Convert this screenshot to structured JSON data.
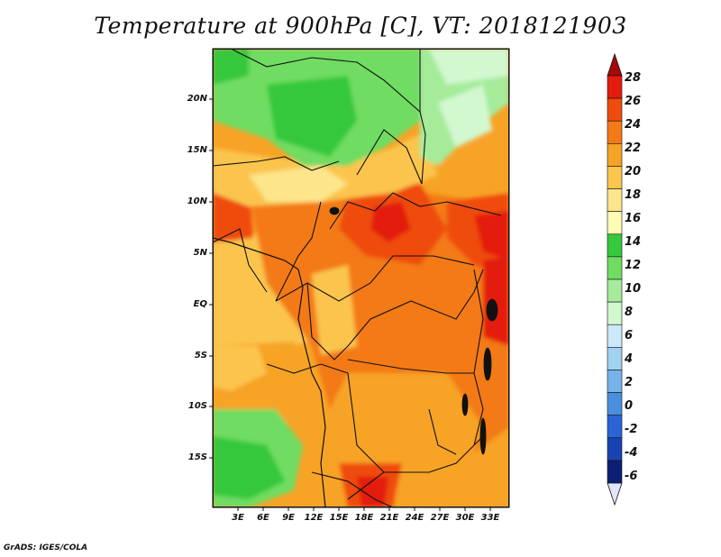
{
  "title": "Temperature at 900hPa [C], VT: 2018121903",
  "credit": "GrADS: IGES/COLA",
  "map": {
    "y_ticks": [
      "20N",
      "15N",
      "10N",
      "5N",
      "EQ",
      "5S",
      "10S",
      "15S"
    ],
    "x_ticks": [
      "3E",
      "6E",
      "9E",
      "12E",
      "15E",
      "18E",
      "21E",
      "24E",
      "27E",
      "30E",
      "33E"
    ]
  },
  "colorbar": {
    "labels": [
      "28",
      "26",
      "24",
      "22",
      "20",
      "18",
      "16",
      "14",
      "12",
      "10",
      "8",
      "6",
      "4",
      "2",
      "0",
      "-2",
      "-4",
      "-6"
    ],
    "colors": [
      "#a50a0a",
      "#e31c0c",
      "#ef4c0e",
      "#f37a17",
      "#f7a326",
      "#fbc54e",
      "#fde58c",
      "#fefbb5",
      "#36c83d",
      "#6fdc62",
      "#a5eb9a",
      "#d2f8d0",
      "#cbe9fa",
      "#a2d1f2",
      "#76b3ea",
      "#4a8fdd",
      "#2a64d6",
      "#1844b3",
      "#0d1f73",
      "#e3e5fb"
    ]
  }
}
